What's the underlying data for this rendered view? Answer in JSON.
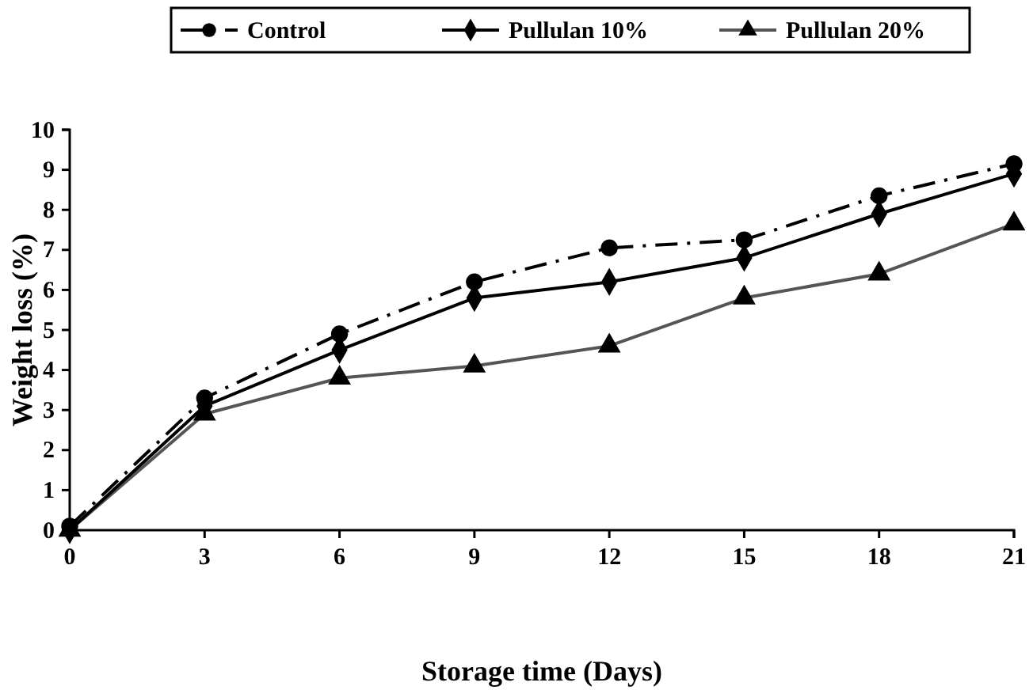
{
  "chart_data": {
    "type": "line",
    "xlabel": "Storage time (Days)",
    "ylabel": "Weight loss (%)",
    "x": [
      0,
      3,
      6,
      9,
      12,
      15,
      18,
      21
    ],
    "xlim": [
      0,
      21
    ],
    "xticks": [
      0,
      3,
      6,
      9,
      12,
      15,
      18,
      21
    ],
    "ylim": [
      0,
      10
    ],
    "yticks": [
      0,
      1,
      2,
      3,
      4,
      5,
      6,
      7,
      8,
      9,
      10
    ],
    "grid": false,
    "legend": "top",
    "series": [
      {
        "name": "Control",
        "color": "#000000",
        "marker": "circle",
        "line_style": "dashed",
        "values": [
          0.1,
          3.3,
          4.9,
          6.2,
          7.05,
          7.25,
          8.35,
          9.15
        ]
      },
      {
        "name": "Pullulan 10%",
        "color": "#000000",
        "marker": "diamond",
        "line_style": "solid",
        "values": [
          0,
          3.1,
          4.5,
          5.8,
          6.2,
          6.8,
          7.9,
          8.9
        ]
      },
      {
        "name": "Pullulan 20%",
        "color": "#555555",
        "marker": "triangle",
        "line_style": "solid",
        "values": [
          0,
          2.9,
          3.8,
          4.1,
          4.6,
          5.8,
          6.4,
          7.65
        ]
      }
    ]
  }
}
